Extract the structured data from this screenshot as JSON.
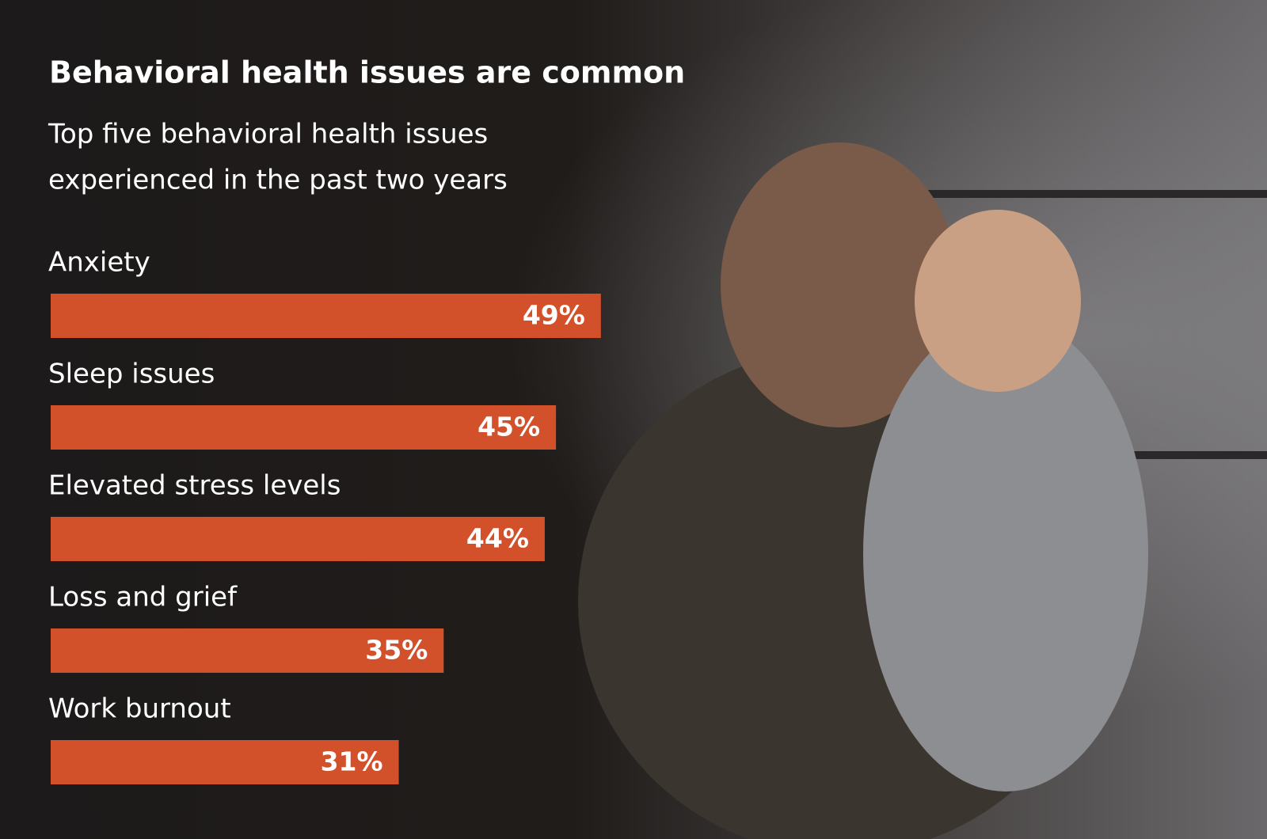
{
  "chart_data": {
    "type": "bar",
    "orientation": "horizontal",
    "title": "Behavioral health issues are common",
    "subtitle": [
      "Top five behavioral health issues",
      "experienced in the past two years"
    ],
    "categories": [
      "Anxiety",
      "Sleep issues",
      "Elevated stress levels",
      "Loss and grief",
      "Work burnout"
    ],
    "values": [
      49,
      45,
      44,
      35,
      31
    ],
    "value_labels": [
      "49%",
      "45%",
      "44%",
      "35%",
      "31%"
    ],
    "color": "#d2502a",
    "xlim": [
      0,
      50
    ]
  }
}
